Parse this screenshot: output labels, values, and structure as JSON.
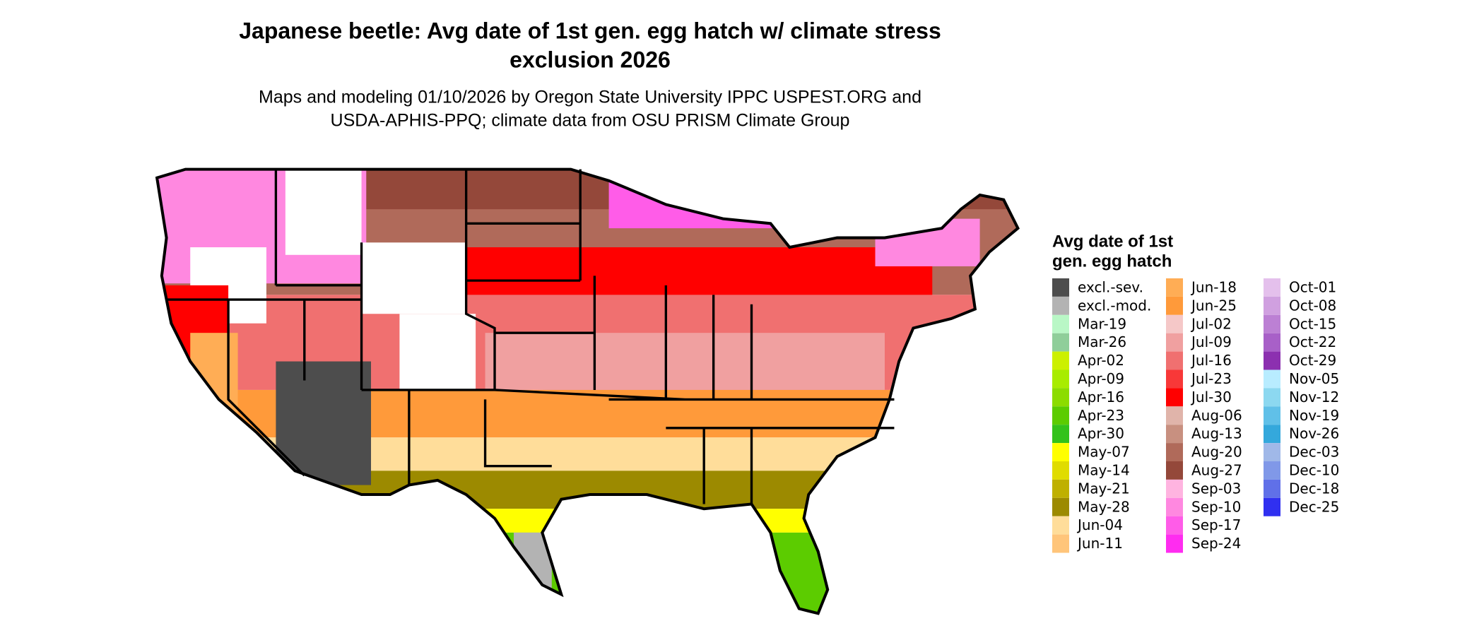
{
  "header": {
    "title": [
      "Japanese beetle: Avg date of 1st gen. egg hatch w/ climate stress",
      "exclusion 2026"
    ],
    "subtitle": [
      "Maps and modeling 01/10/2026 by Oregon State University IPPC USPEST.ORG and",
      "USDA-APHIS-PPQ; climate data from OSU PRISM Climate Group"
    ]
  },
  "legend": {
    "title": [
      "Avg date of 1st",
      "gen. egg hatch"
    ],
    "columns": [
      [
        {
          "label": "excl.-sev.",
          "color": "#4d4d4d"
        },
        {
          "label": "excl.-mod.",
          "color": "#b3b3b3"
        },
        {
          "label": "Mar-19",
          "color": "#b9f7c6"
        },
        {
          "label": "Mar-26",
          "color": "#8fce9a"
        },
        {
          "label": "Apr-02",
          "color": "#ccf000"
        },
        {
          "label": "Apr-09",
          "color": "#a8ec00"
        },
        {
          "label": "Apr-16",
          "color": "#8cdc00"
        },
        {
          "label": "Apr-23",
          "color": "#5ccc00"
        },
        {
          "label": "Apr-30",
          "color": "#33c21a"
        },
        {
          "label": "May-07",
          "color": "#ffff00"
        },
        {
          "label": "May-14",
          "color": "#e0dc00"
        },
        {
          "label": "May-21",
          "color": "#bfb000"
        },
        {
          "label": "May-28",
          "color": "#9c8a00"
        },
        {
          "label": "Jun-04",
          "color": "#ffdd9a"
        },
        {
          "label": "Jun-11",
          "color": "#ffc57a"
        }
      ],
      [
        {
          "label": "Jun-18",
          "color": "#ffad55"
        },
        {
          "label": "Jun-25",
          "color": "#ff9a3a"
        },
        {
          "label": "Jul-02",
          "color": "#f5c8c8"
        },
        {
          "label": "Jul-09",
          "color": "#f0a0a0"
        },
        {
          "label": "Jul-16",
          "color": "#f07070"
        },
        {
          "label": "Jul-23",
          "color": "#f83838"
        },
        {
          "label": "Jul-30",
          "color": "#ff0000"
        },
        {
          "label": "Aug-06",
          "color": "#e0b4aa"
        },
        {
          "label": "Aug-13",
          "color": "#c89080"
        },
        {
          "label": "Aug-20",
          "color": "#b06a5a"
        },
        {
          "label": "Aug-27",
          "color": "#94483a"
        },
        {
          "label": "Sep-03",
          "color": "#ffb4e0"
        },
        {
          "label": "Sep-10",
          "color": "#ff88e0"
        },
        {
          "label": "Sep-17",
          "color": "#ff5ce8"
        },
        {
          "label": "Sep-24",
          "color": "#ff2cf0"
        }
      ],
      [
        {
          "label": "Oct-01",
          "color": "#e4c0ec"
        },
        {
          "label": "Oct-08",
          "color": "#d0a0e0"
        },
        {
          "label": "Oct-15",
          "color": "#bc80d4"
        },
        {
          "label": "Oct-22",
          "color": "#a860c8"
        },
        {
          "label": "Oct-29",
          "color": "#8c30b0"
        },
        {
          "label": "Nov-05",
          "color": "#b8ecff"
        },
        {
          "label": "Nov-12",
          "color": "#8cd8f0"
        },
        {
          "label": "Nov-19",
          "color": "#60c0e8"
        },
        {
          "label": "Nov-26",
          "color": "#34a8dc"
        },
        {
          "label": "Dec-03",
          "color": "#a0b8e8"
        },
        {
          "label": "Dec-10",
          "color": "#8098e8"
        },
        {
          "label": "Dec-18",
          "color": "#6070e8"
        },
        {
          "label": "Dec-25",
          "color": "#3030f0"
        }
      ]
    ]
  }
}
